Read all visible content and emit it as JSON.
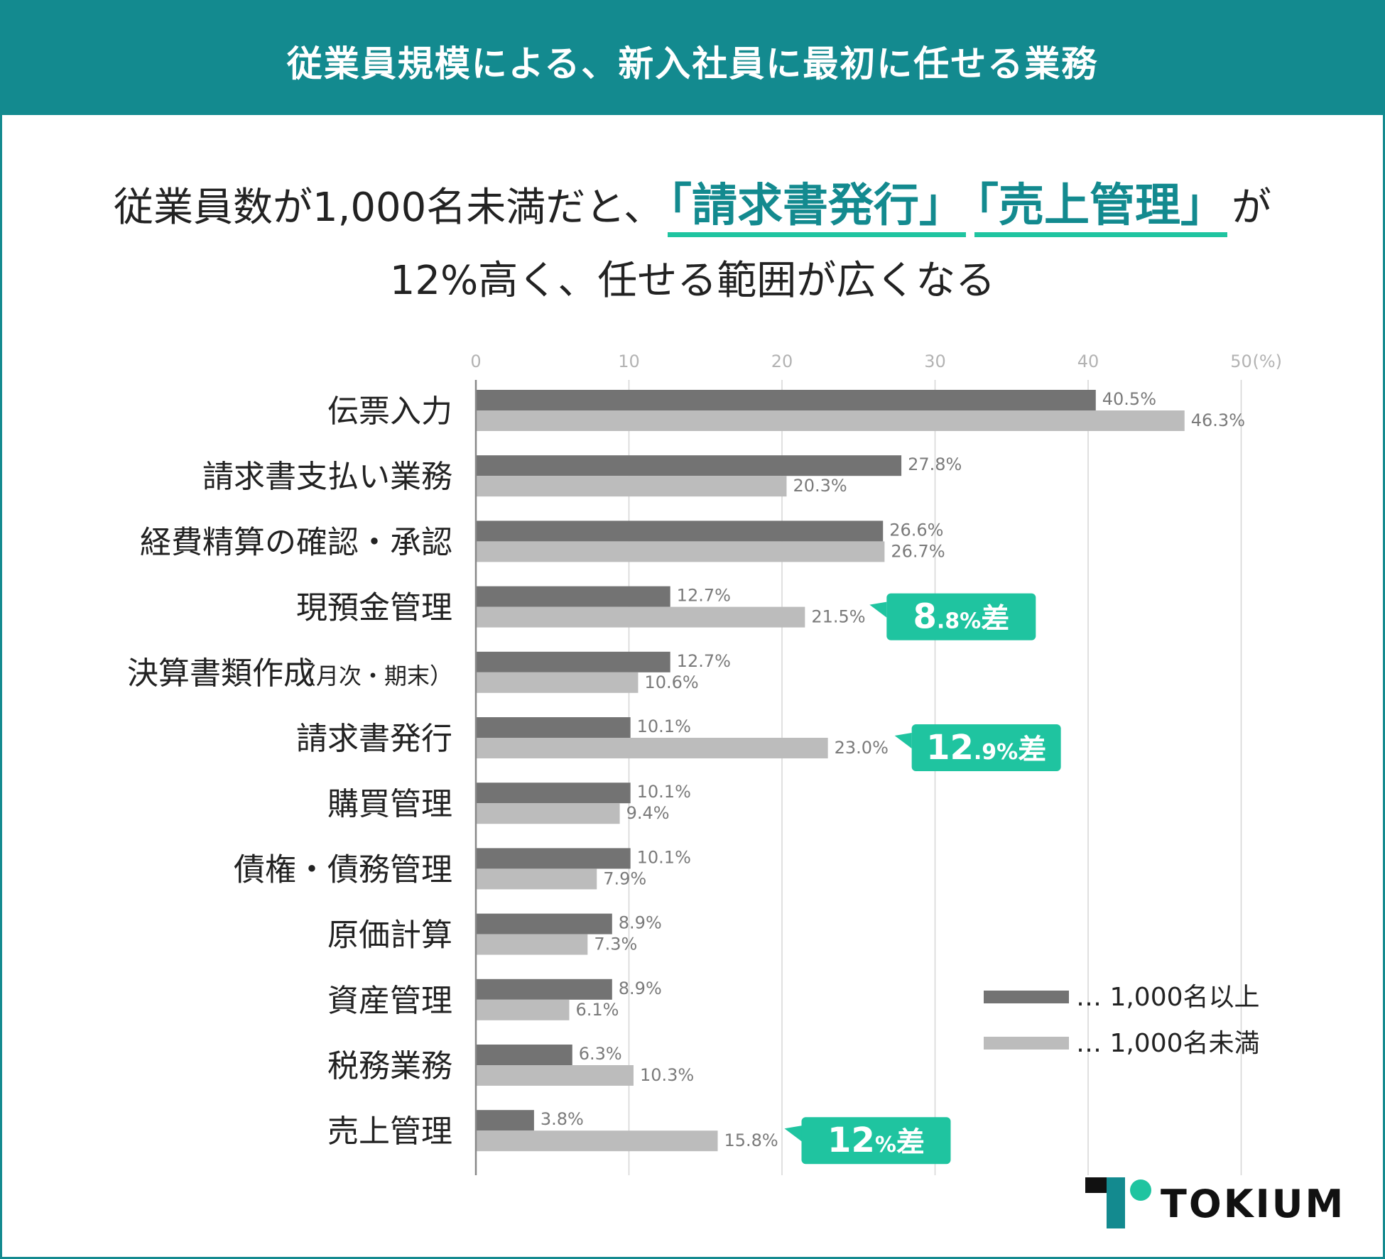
{
  "header": {
    "title": "従業員規模による、新入社員に最初に任せる業務"
  },
  "headline": {
    "line1_prefix": "従業員数が1,000名未満だと、",
    "highlight1": "「請求書発行」",
    "highlight2": "「売上管理」",
    "line1_suffix": "が",
    "line2": "12%高く、任せる範囲が広くなる"
  },
  "colors": {
    "header_bg": "#138a8f",
    "series_1000_plus": "#737373",
    "series_under_1000": "#bcbcbc",
    "callout": "#1fc4a0",
    "highlight_text": "#138a8f"
  },
  "chart_data": {
    "type": "bar",
    "orientation": "horizontal",
    "unit": "(%)",
    "xlim": [
      0,
      50
    ],
    "xticks": [
      "0",
      "10",
      "20",
      "30",
      "40",
      "50"
    ],
    "grid": true,
    "legend_position": "bottom-right",
    "categories": [
      {
        "label": "伝票入力",
        "sub": ""
      },
      {
        "label": "請求書支払い業務",
        "sub": ""
      },
      {
        "label": "経費精算の確認・承認",
        "sub": ""
      },
      {
        "label": "現預金管理",
        "sub": ""
      },
      {
        "label": "決算書類作成",
        "sub": "（月次・期末）"
      },
      {
        "label": "請求書発行",
        "sub": ""
      },
      {
        "label": "購買管理",
        "sub": ""
      },
      {
        "label": "債権・債務管理",
        "sub": ""
      },
      {
        "label": "原価計算",
        "sub": ""
      },
      {
        "label": "資産管理",
        "sub": ""
      },
      {
        "label": "税務業務",
        "sub": ""
      },
      {
        "label": "売上管理",
        "sub": ""
      }
    ],
    "series": [
      {
        "name": "1,000名以上",
        "values": [
          40.5,
          27.8,
          26.6,
          12.7,
          12.7,
          10.1,
          10.1,
          10.1,
          8.9,
          8.9,
          6.3,
          3.8
        ],
        "labels": [
          "40.5%",
          "27.8%",
          "26.6%",
          "12.7%",
          "12.7%",
          "10.1%",
          "10.1%",
          "10.1%",
          "8.9%",
          "8.9%",
          "6.3%",
          "3.8%"
        ]
      },
      {
        "name": "1,000名未満",
        "values": [
          46.3,
          20.3,
          26.7,
          21.5,
          10.6,
          23.0,
          9.4,
          7.9,
          7.3,
          6.1,
          10.3,
          15.8
        ],
        "labels": [
          "46.3%",
          "20.3%",
          "26.7%",
          "21.5%",
          "10.6%",
          "23.0%",
          "9.4%",
          "7.9%",
          "7.3%",
          "6.1%",
          "10.3%",
          "15.8%"
        ]
      }
    ],
    "legend": [
      {
        "marker": "…",
        "label": "1,000名以上"
      },
      {
        "marker": "…",
        "label": "1,000名未満"
      }
    ],
    "annotations": [
      {
        "category_index": 3,
        "big": "8",
        "small": ".8%",
        "suffix": "差"
      },
      {
        "category_index": 5,
        "big": "12",
        "small": ".9%",
        "suffix": "差"
      },
      {
        "category_index": 11,
        "big": "12",
        "small": "%",
        "suffix": "差"
      }
    ]
  },
  "brand": {
    "name": "TOKIUM"
  }
}
